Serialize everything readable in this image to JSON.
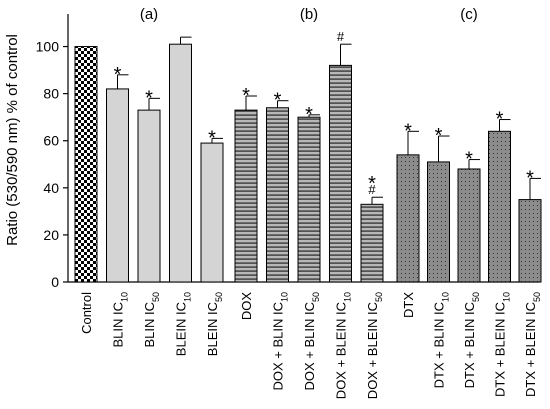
{
  "chart_data": {
    "type": "bar",
    "ylabel": "Ratio (530/590 nm) % of control",
    "ylim": [
      0,
      110
    ],
    "yticks": [
      0,
      20,
      40,
      60,
      80,
      100
    ],
    "grid": false,
    "panels": [
      {
        "label": "(a)",
        "bars": [
          {
            "category": "Control",
            "sub": "",
            "value": 100,
            "error": 0,
            "marks": [],
            "pattern": "checker"
          },
          {
            "category": "BLIN IC",
            "sub": "10",
            "value": 82,
            "error": 6,
            "marks": [
              "*"
            ],
            "pattern": "light"
          },
          {
            "category": "BLIN IC",
            "sub": "50",
            "value": 73,
            "error": 5,
            "marks": [
              "*"
            ],
            "pattern": "light"
          },
          {
            "category": "BLEIN IC",
            "sub": "10",
            "value": 101,
            "error": 3,
            "marks": [],
            "pattern": "light"
          },
          {
            "category": "BLEIN IC",
            "sub": "50",
            "value": 59,
            "error": 2,
            "marks": [
              "*"
            ],
            "pattern": "light"
          }
        ]
      },
      {
        "label": "(b)",
        "bars": [
          {
            "category": "DOX",
            "sub": "",
            "value": 73,
            "error": 6,
            "marks": [
              "*"
            ],
            "pattern": "hstripe"
          },
          {
            "category": "DOX + BLIN IC",
            "sub": "10",
            "value": 74,
            "error": 3,
            "marks": [
              "*"
            ],
            "pattern": "hstripe"
          },
          {
            "category": "DOX + BLIN IC",
            "sub": "50",
            "value": 70,
            "error": 1,
            "marks": [
              "*"
            ],
            "pattern": "hstripe"
          },
          {
            "category": "DOX + BLEIN IC",
            "sub": "10",
            "value": 92,
            "error": 9,
            "marks": [
              "#"
            ],
            "pattern": "hstripe"
          },
          {
            "category": "DOX + BLEIN IC",
            "sub": "50",
            "value": 33,
            "error": 3,
            "marks": [
              "*",
              "#"
            ],
            "pattern": "hstripe"
          }
        ]
      },
      {
        "label": "(c)",
        "bars": [
          {
            "category": "DTX",
            "sub": "",
            "value": 54,
            "error": 10,
            "marks": [
              "*"
            ],
            "pattern": "dots"
          },
          {
            "category": "DTX + BLIN IC",
            "sub": "10",
            "value": 51,
            "error": 11,
            "marks": [
              "*"
            ],
            "pattern": "dots"
          },
          {
            "category": "DTX + BLIN IC",
            "sub": "50",
            "value": 48,
            "error": 4,
            "marks": [
              "*"
            ],
            "pattern": "dots"
          },
          {
            "category": "DTX + BLEIN IC",
            "sub": "10",
            "value": 64,
            "error": 5,
            "marks": [
              "*"
            ],
            "pattern": "dots"
          },
          {
            "category": "DTX + BLEIN IC",
            "sub": "50",
            "value": 35,
            "error": 9,
            "marks": [
              "*"
            ],
            "pattern": "dots"
          }
        ]
      }
    ]
  }
}
